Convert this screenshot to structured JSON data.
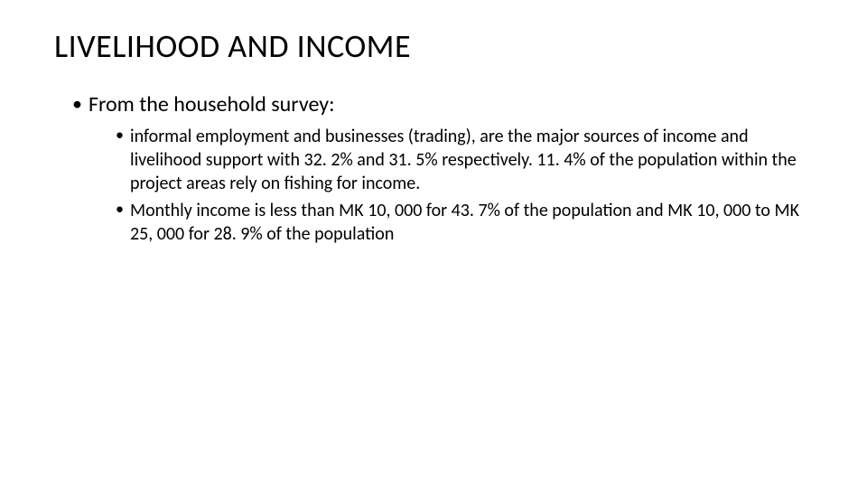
{
  "slide": {
    "title": "LIVELIHOOD AND INCOME",
    "title_fontsize": 36,
    "title_color": "#000000",
    "background_color": "#ffffff",
    "bullets": {
      "level1": [
        {
          "text": "From the household survey:",
          "fontsize": 24,
          "sub": [
            "informal employment and businesses (trading), are the major sources of income and livelihood support with 32. 2% and 31. 5% respectively. 11. 4% of the population within the project areas rely on fishing for income.",
            "Monthly income is less than MK 10, 000 for 43. 7% of the population and MK 10, 000 to MK 25, 000 for 28. 9% of the population"
          ],
          "sub_fontsize": 20
        }
      ]
    }
  }
}
